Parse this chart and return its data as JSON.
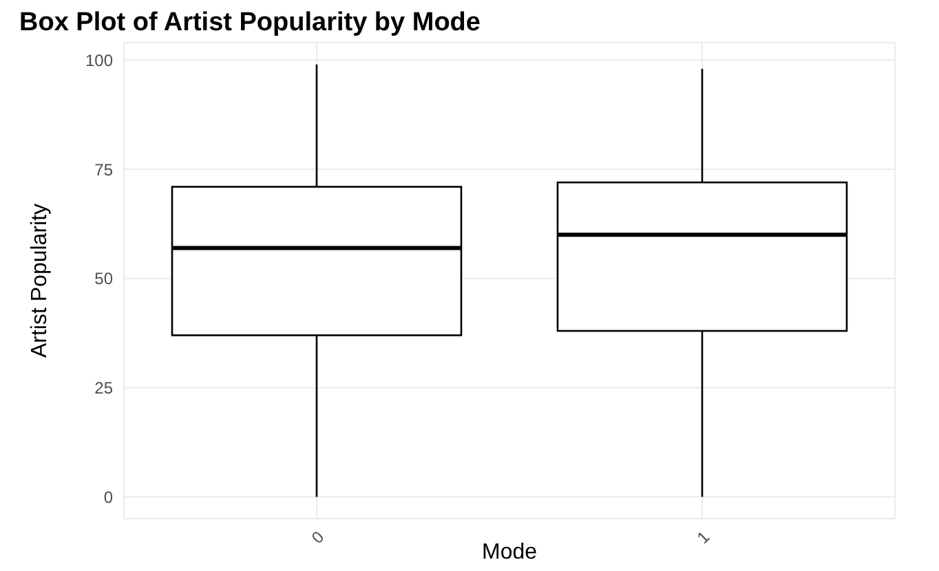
{
  "chart_data": {
    "type": "box",
    "title": "Box Plot of Artist Popularity by Mode",
    "xlabel": "Mode",
    "ylabel": "Artist Popularity",
    "categories": [
      "0",
      "1"
    ],
    "boxes": [
      {
        "low": 0,
        "q1": 37,
        "median": 57,
        "q3": 71,
        "high": 99
      },
      {
        "low": 0,
        "q1": 38,
        "median": 60,
        "q3": 72,
        "high": 98
      }
    ],
    "ylim": [
      -5,
      104
    ],
    "yticks": [
      0,
      25,
      50,
      75,
      100
    ],
    "grid": true
  }
}
